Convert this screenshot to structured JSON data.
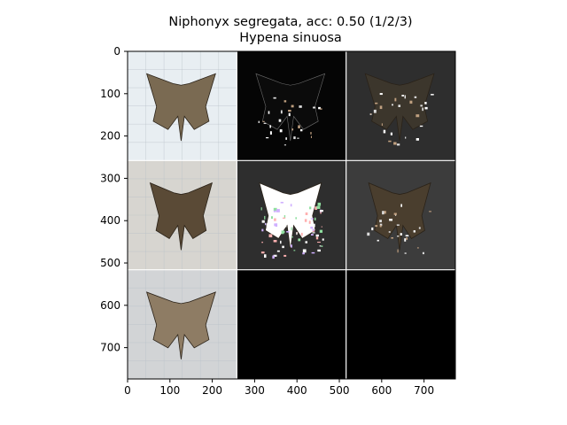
{
  "figure": {
    "title_line1": "Niphonyx segregata, acc: 0.50 (1/2/3)",
    "title_line2": "Hypena sinuosa"
  },
  "axes": {
    "x_ticks": [
      "0",
      "100",
      "200",
      "300",
      "400",
      "500",
      "600",
      "700"
    ],
    "y_ticks": [
      "0",
      "100",
      "200",
      "300",
      "400",
      "500",
      "600",
      "700"
    ],
    "x_range": [
      0,
      774
    ],
    "y_range": [
      0,
      774
    ]
  },
  "grid_images": [
    {
      "row": 0,
      "col": 0,
      "name": "sample-1-original",
      "kind": "moth-photo",
      "bg": "#e8eef2",
      "wing": "#7a6a52"
    },
    {
      "row": 0,
      "col": 1,
      "name": "sample-1-attribution",
      "kind": "dark-map",
      "bg": "#050505",
      "wing": "#0e0e0e"
    },
    {
      "row": 0,
      "col": 2,
      "name": "sample-1-overlay",
      "kind": "dim-moth",
      "bg": "#2e2e2e",
      "wing": "#3c362c"
    },
    {
      "row": 1,
      "col": 0,
      "name": "sample-2-original",
      "kind": "moth-photo",
      "bg": "#d7d5d0",
      "wing": "#5a4a36"
    },
    {
      "row": 1,
      "col": 1,
      "name": "sample-2-attribution",
      "kind": "noisy-map",
      "bg": "#2e2e2e",
      "wing": "#ffffff"
    },
    {
      "row": 1,
      "col": 2,
      "name": "sample-2-overlay",
      "kind": "dim-moth",
      "bg": "#3c3c3c",
      "wing": "#4a3e2e"
    },
    {
      "row": 2,
      "col": 0,
      "name": "sample-3-original",
      "kind": "moth-photo",
      "bg": "#d2d4d6",
      "wing": "#8e7c64"
    },
    {
      "row": 2,
      "col": 1,
      "name": "empty-panel-1",
      "kind": "blank",
      "bg": "#000000",
      "wing": ""
    },
    {
      "row": 2,
      "col": 2,
      "name": "empty-panel-2",
      "kind": "blank",
      "bg": "#000000",
      "wing": ""
    }
  ]
}
